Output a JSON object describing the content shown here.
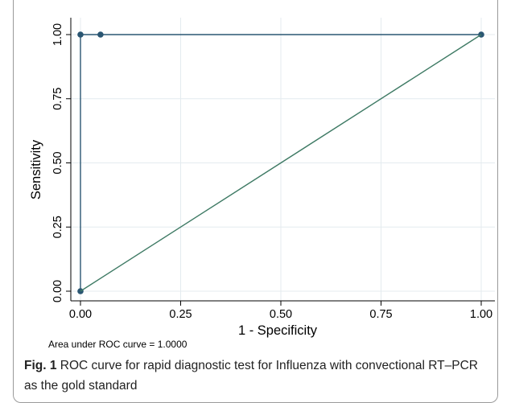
{
  "chart_data": {
    "type": "line",
    "xlabel": "1 - Specificity",
    "ylabel": "Sensitivity",
    "xlim": [
      0,
      1
    ],
    "ylim": [
      0,
      1
    ],
    "x_ticks": [
      "0.00",
      "0.25",
      "0.50",
      "0.75",
      "1.00"
    ],
    "y_ticks": [
      "0.00",
      "0.25",
      "0.50",
      "0.75",
      "1.00"
    ],
    "grid": true,
    "series": [
      {
        "x": [
          0.0,
          0.0,
          0.05,
          1.0
        ],
        "y": [
          0.0,
          1.0,
          1.0,
          1.0
        ],
        "markers": true
      },
      {
        "x": [
          0.0,
          1.0
        ],
        "y": [
          0.0,
          1.0
        ],
        "markers": false
      }
    ],
    "note": "Area under ROC curve = 1.0000",
    "colors": {
      "line": "#2a5672",
      "reference": "#3e7a64",
      "grid": "#e4ebef"
    }
  },
  "caption": {
    "label": "Fig. 1",
    "text": "ROC curve for rapid diagnostic test for Influenza with convectional RT–PCR as the gold standard"
  }
}
